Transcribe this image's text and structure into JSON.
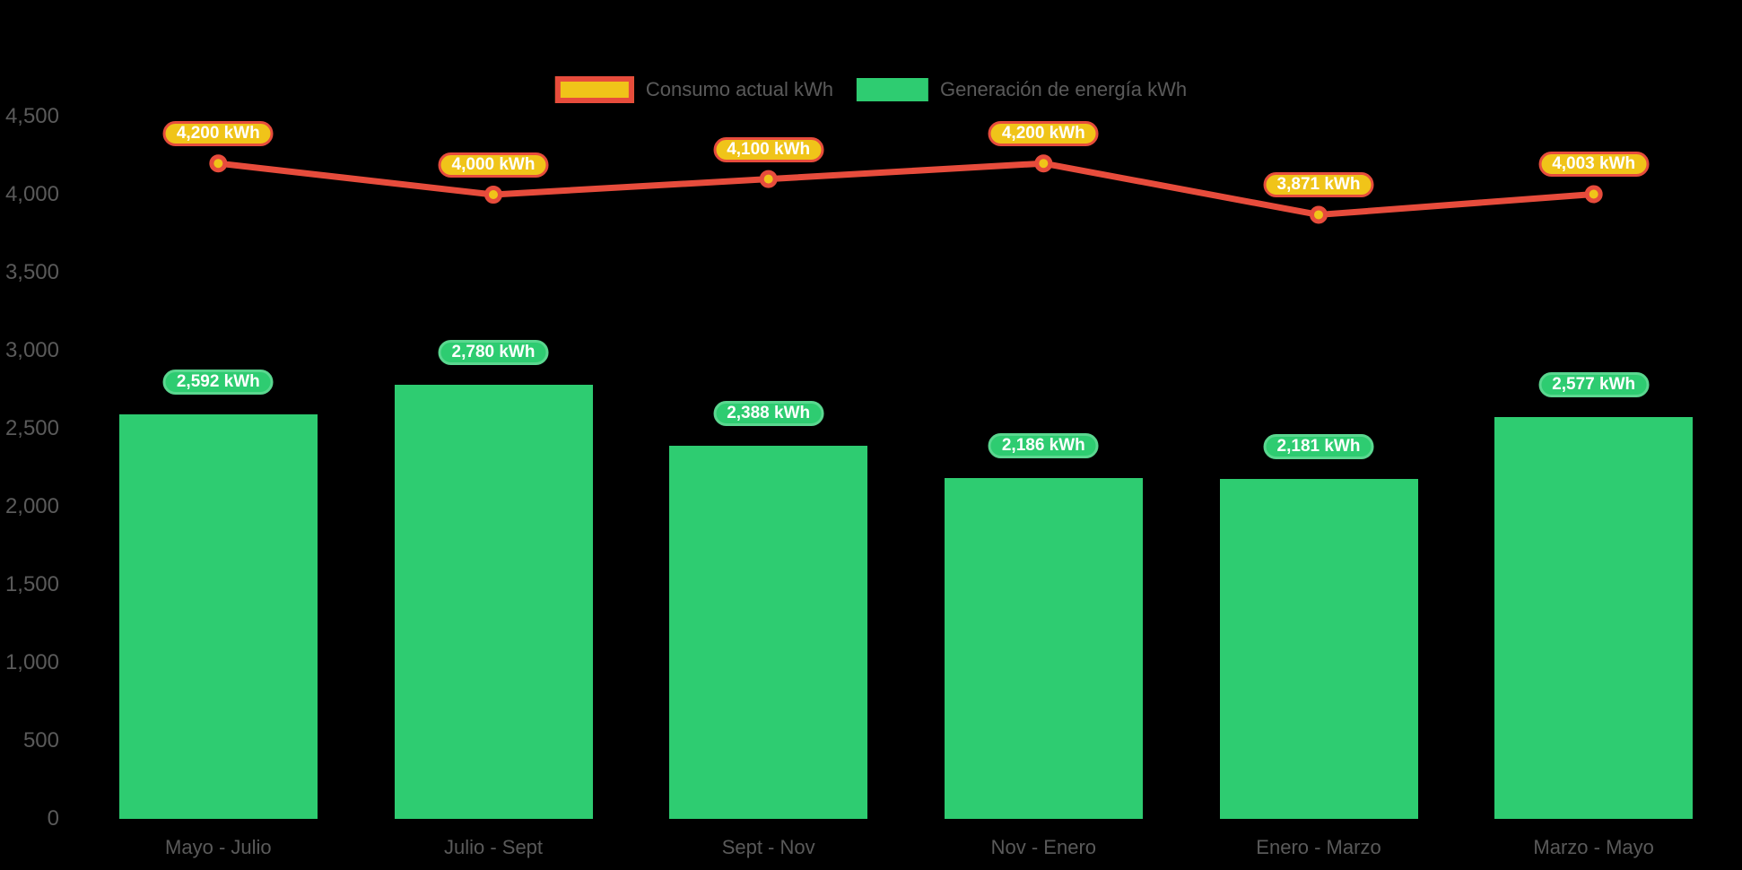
{
  "legend": {
    "items": [
      {
        "label": "Consumo actual kWh"
      },
      {
        "label": "Generación de energía kWh"
      }
    ]
  },
  "colors": {
    "background": "#000000",
    "axis_text": "#5A5A5A",
    "bar_green": "#2ECC71",
    "bar_badge_border": "#5AD78F",
    "line_red": "#E74C3C",
    "marker_gold": "#F0C419",
    "badge_text": "#FFFFFF"
  },
  "chart_data": {
    "type": "bar+line",
    "categories": [
      "Mayo - Julio",
      "Julio - Sept",
      "Sept - Nov",
      "Nov - Enero",
      "Enero - Marzo",
      "Marzo - Mayo"
    ],
    "series": [
      {
        "name": "Consumo actual kWh",
        "type": "line",
        "color": "#E74C3C",
        "marker_fill": "#F0C419",
        "values": [
          4200,
          4000,
          4100,
          4200,
          3871,
          4003
        ],
        "labels": [
          "4,200 kWh",
          "4,000 kWh",
          "4,100 kWh",
          "4,200 kWh",
          "3,871 kWh",
          "4,003 kWh"
        ]
      },
      {
        "name": "Generación de energía kWh",
        "type": "bar",
        "color": "#2ECC71",
        "values": [
          2592,
          2780,
          2388,
          2186,
          2181,
          2577
        ],
        "labels": [
          "2,592 kWh",
          "2,780 kWh",
          "2,388 kWh",
          "2,186 kWh",
          "2,181 kWh",
          "2,577 kWh"
        ]
      }
    ],
    "ylim": [
      0,
      4500
    ],
    "ytick_step": 500,
    "ytick_labels": [
      "0",
      "500",
      "1,000",
      "1,500",
      "2,000",
      "2,500",
      "3,000",
      "3,500",
      "4,000",
      "4,500"
    ],
    "grid": false,
    "legend_position": "top-center"
  }
}
